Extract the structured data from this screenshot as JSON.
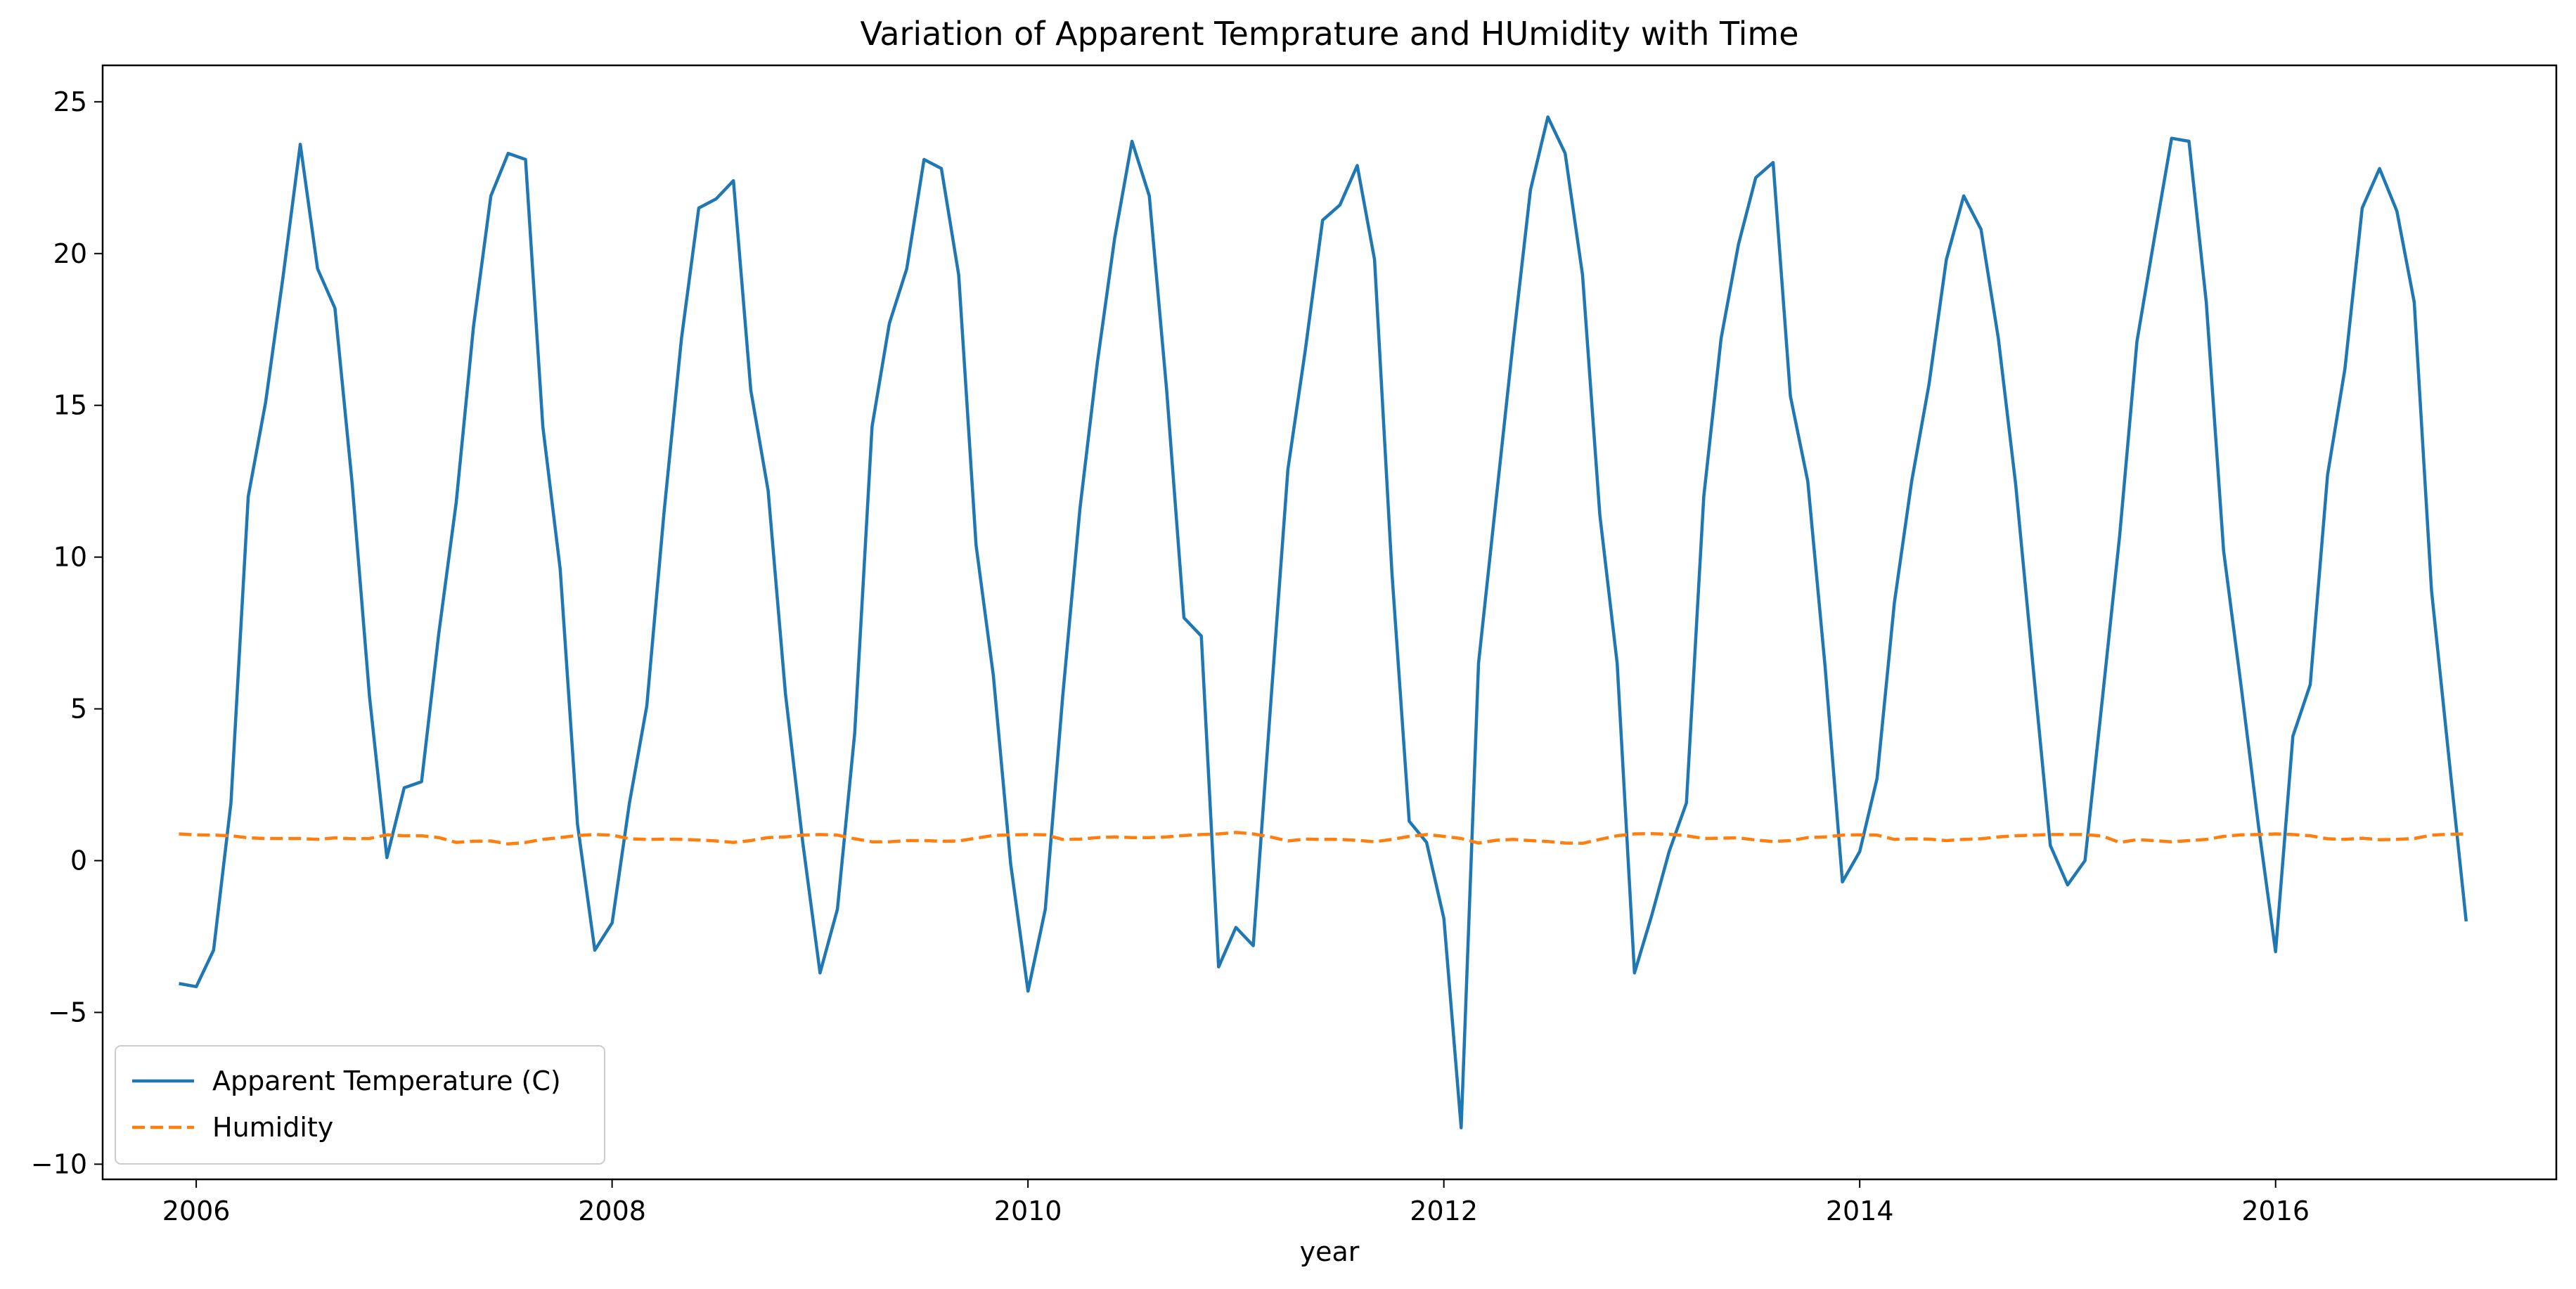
{
  "chart_data": {
    "type": "line",
    "title": "Variation of Apparent Temprature and HUmidity with Time",
    "xlabel": "year",
    "ylabel": "",
    "xlim": [
      2005.55,
      2017.35
    ],
    "ylim": [
      -10.5,
      26.2
    ],
    "x_ticks": [
      2006,
      2008,
      2010,
      2012,
      2014,
      2016
    ],
    "x_tick_labels": [
      "2006",
      "2008",
      "2010",
      "2012",
      "2014",
      "2016"
    ],
    "y_ticks": [
      -10,
      -5,
      0,
      5,
      10,
      15,
      20,
      25
    ],
    "y_tick_labels": [
      "−10",
      "−5",
      "0",
      "5",
      "10",
      "15",
      "20",
      "25"
    ],
    "legend_position": "lower-left",
    "grid": false,
    "x_start": 2005.917,
    "x_step": 0.08333,
    "series": [
      {
        "name": "Apparent Temperature (C)",
        "color": "#1f77b4",
        "dash": "solid",
        "values": [
          -4.05,
          -4.15,
          -2.95,
          1.9,
          12.0,
          15.1,
          19.2,
          23.6,
          19.5,
          18.2,
          12.4,
          5.4,
          0.1,
          2.4,
          2.6,
          7.5,
          11.8,
          17.6,
          21.9,
          23.3,
          23.1,
          14.3,
          9.6,
          1.2,
          -2.95,
          -2.05,
          1.9,
          5.1,
          11.5,
          17.2,
          21.5,
          21.8,
          22.4,
          15.5,
          12.2,
          5.5,
          0.6,
          -3.7,
          -1.6,
          4.2,
          14.3,
          17.7,
          19.5,
          23.1,
          22.8,
          19.3,
          10.4,
          6.1,
          -0.1,
          -4.3,
          -1.6,
          5.4,
          11.6,
          16.4,
          20.5,
          23.7,
          21.9,
          15.5,
          8.0,
          7.4,
          -3.5,
          -2.2,
          -2.8,
          5.1,
          12.9,
          16.8,
          21.1,
          21.6,
          22.9,
          19.8,
          9.5,
          1.3,
          0.6,
          -1.9,
          -8.8,
          6.5,
          11.8,
          17.1,
          22.1,
          24.5,
          23.3,
          19.3,
          11.4,
          6.5,
          -3.7,
          -1.8,
          0.3,
          1.9,
          12.0,
          17.2,
          20.3,
          22.5,
          23.0,
          15.3,
          12.5,
          6.4,
          -0.7,
          0.3,
          2.7,
          8.5,
          12.5,
          15.7,
          19.8,
          21.9,
          20.8,
          17.2,
          12.4,
          6.4,
          0.5,
          -0.8,
          0.0,
          5.3,
          10.7,
          17.1,
          20.5,
          23.8,
          23.7,
          18.4,
          10.2,
          5.8,
          1.2,
          -3.0,
          4.1,
          5.8,
          12.7,
          16.2,
          21.5,
          22.8,
          21.4,
          18.4,
          8.9,
          3.4,
          -2.0
        ]
      },
      {
        "name": "Humidity",
        "color": "#ff7f0e",
        "dash": "dashed",
        "values": [
          0.88,
          0.85,
          0.84,
          0.82,
          0.75,
          0.73,
          0.73,
          0.73,
          0.7,
          0.75,
          0.72,
          0.73,
          0.85,
          0.82,
          0.82,
          0.76,
          0.6,
          0.64,
          0.65,
          0.55,
          0.6,
          0.7,
          0.76,
          0.83,
          0.86,
          0.84,
          0.72,
          0.7,
          0.71,
          0.7,
          0.68,
          0.65,
          0.6,
          0.66,
          0.76,
          0.78,
          0.84,
          0.86,
          0.84,
          0.72,
          0.62,
          0.62,
          0.66,
          0.66,
          0.64,
          0.65,
          0.74,
          0.83,
          0.85,
          0.86,
          0.85,
          0.7,
          0.71,
          0.76,
          0.78,
          0.76,
          0.76,
          0.78,
          0.83,
          0.86,
          0.88,
          0.93,
          0.88,
          0.78,
          0.65,
          0.71,
          0.7,
          0.7,
          0.67,
          0.62,
          0.7,
          0.8,
          0.86,
          0.8,
          0.73,
          0.58,
          0.67,
          0.7,
          0.66,
          0.63,
          0.58,
          0.57,
          0.7,
          0.82,
          0.88,
          0.89,
          0.87,
          0.82,
          0.73,
          0.74,
          0.75,
          0.68,
          0.63,
          0.66,
          0.76,
          0.78,
          0.84,
          0.85,
          0.84,
          0.7,
          0.72,
          0.71,
          0.66,
          0.7,
          0.72,
          0.78,
          0.82,
          0.84,
          0.86,
          0.86,
          0.86,
          0.81,
          0.6,
          0.69,
          0.66,
          0.62,
          0.66,
          0.7,
          0.8,
          0.85,
          0.86,
          0.88,
          0.86,
          0.82,
          0.72,
          0.7,
          0.74,
          0.69,
          0.7,
          0.73,
          0.84,
          0.87,
          0.88
        ]
      }
    ]
  }
}
